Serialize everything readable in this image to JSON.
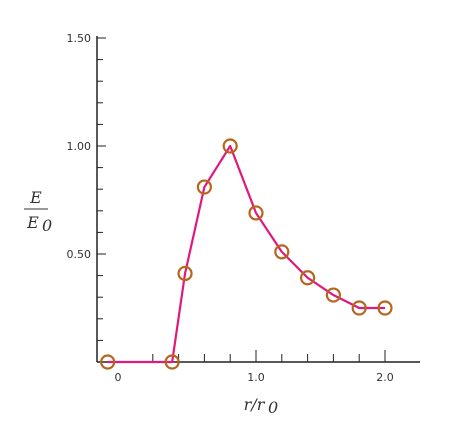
{
  "chart_data": {
    "type": "line",
    "title": "",
    "xlabel": "r/r0",
    "ylabel": "E/E0",
    "x": [
      -0.15,
      0.35,
      0.45,
      0.6,
      0.8,
      1.0,
      1.2,
      1.4,
      1.6,
      1.8,
      2.0
    ],
    "series": [
      {
        "name": "E/E0",
        "values": [
          0,
          0,
          0.41,
          0.81,
          1.0,
          0.69,
          0.51,
          0.39,
          0.31,
          0.25,
          0.25
        ]
      }
    ],
    "xlim": [
      -0.15,
      2.0
    ],
    "ylim": [
      0,
      1.5
    ],
    "x_ticks": [
      0,
      1.0,
      2.0
    ],
    "x_tick_labels": [
      "0",
      "1.0",
      "2.0"
    ],
    "y_ticks": [
      0.5,
      1.0,
      1.5
    ],
    "y_tick_labels": [
      "0.50",
      "1.00",
      "1.50"
    ],
    "line_color": "#e0197d",
    "marker_color": "#b5651d",
    "grid": false
  },
  "labels": {
    "y_numerator": "E",
    "y_denominator": "E",
    "y_denominator_sub": "0",
    "x_main": "r/r",
    "x_sub": "0"
  }
}
